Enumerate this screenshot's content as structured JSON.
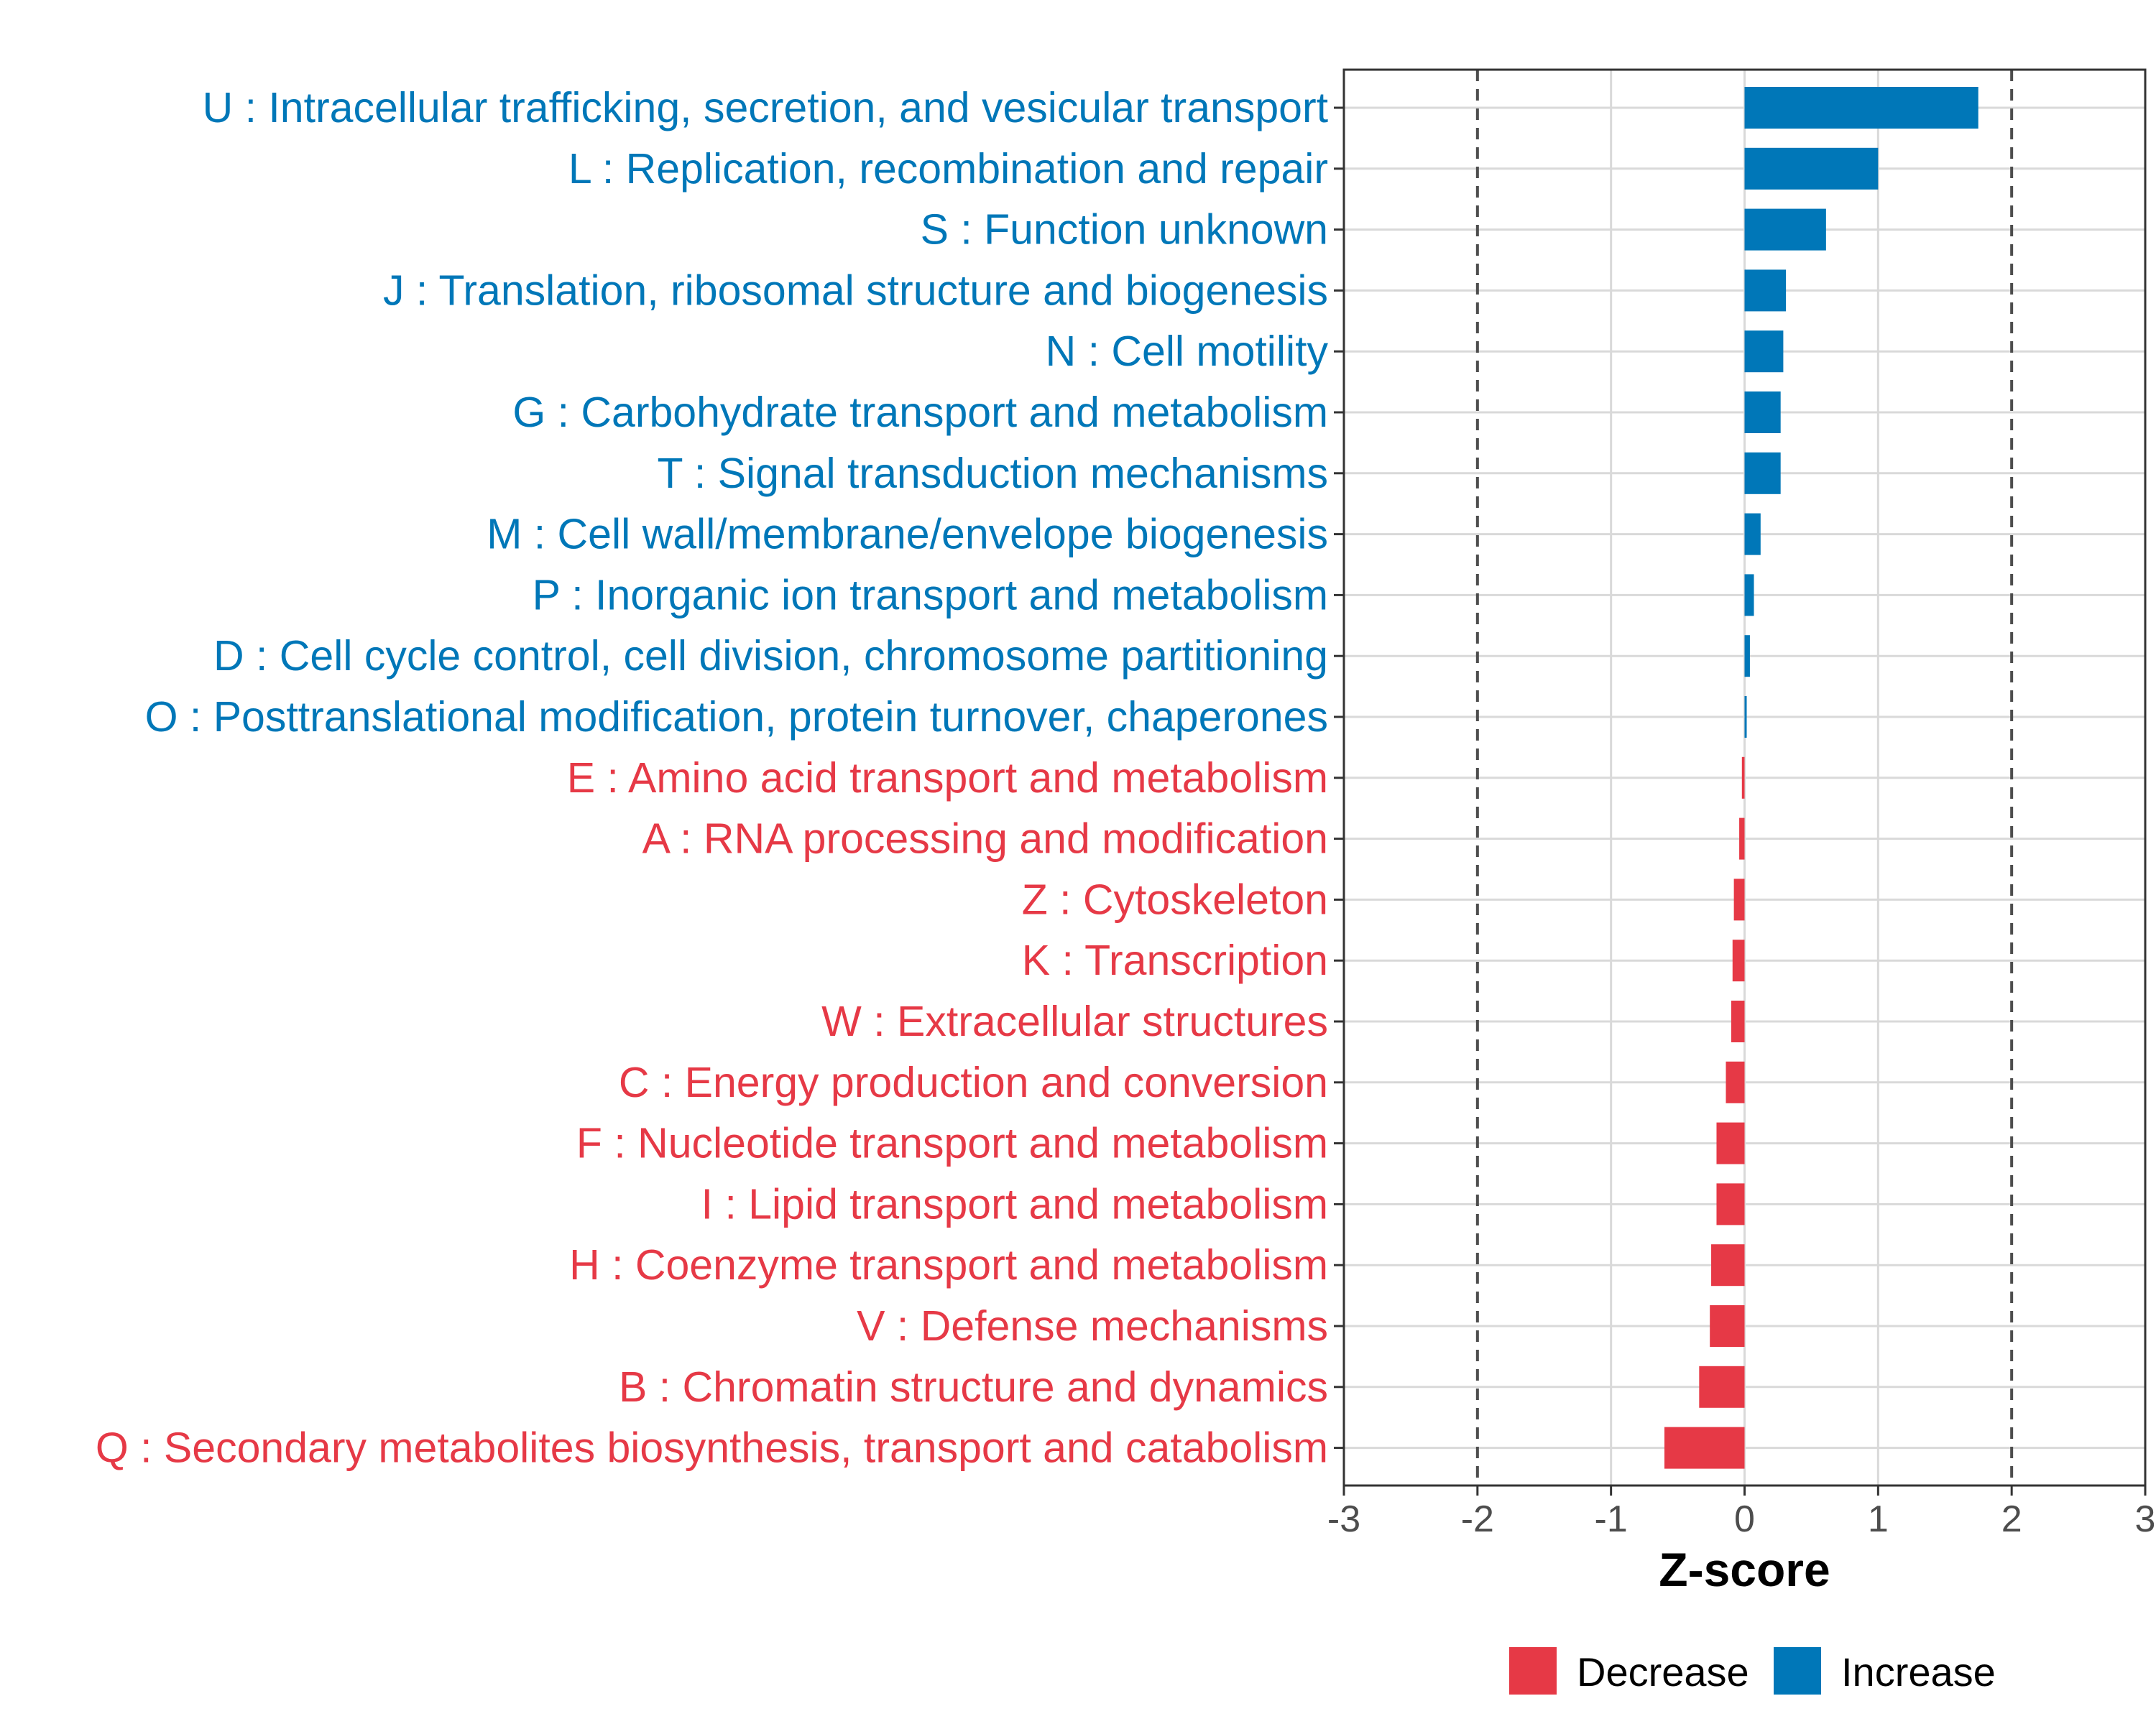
{
  "colors": {
    "increase": "#0077B8",
    "decrease": "#E63946",
    "grid": "#D9D9D9",
    "threshold": "#4D4D4D"
  },
  "chart_data": {
    "type": "bar",
    "orientation": "horizontal",
    "xlabel": "Z-score",
    "xlim": [
      -3,
      3
    ],
    "xticks": [
      "-3",
      "-2",
      "-1",
      "0",
      "1",
      "2",
      "3"
    ],
    "threshold_lines": [
      -2,
      2
    ],
    "categories": [
      "U : Intracellular trafficking, secretion, and vesicular transport",
      "L : Replication, recombination and repair",
      "S : Function unknown",
      "J : Translation, ribosomal structure and biogenesis",
      "N : Cell motility",
      "G : Carbohydrate transport and metabolism",
      "T : Signal transduction mechanisms",
      "M : Cell wall/membrane/envelope biogenesis",
      "P : Inorganic ion transport and metabolism",
      "D : Cell cycle control, cell division, chromosome partitioning",
      "O : Posttranslational modification, protein turnover, chaperones",
      "E : Amino acid transport and metabolism",
      "A : RNA processing and modification",
      "Z : Cytoskeleton",
      "K : Transcription",
      "W : Extracellular structures",
      "C : Energy production and conversion",
      "F : Nucleotide transport and metabolism",
      "I : Lipid transport and metabolism",
      "H : Coenzyme transport and metabolism",
      "V : Defense mechanisms",
      "B : Chromatin structure and dynamics",
      "Q : Secondary metabolites biosynthesis, transport and catabolism"
    ],
    "values": [
      1.75,
      1.0,
      0.61,
      0.31,
      0.29,
      0.27,
      0.27,
      0.12,
      0.07,
      0.04,
      0.01,
      -0.02,
      -0.04,
      -0.08,
      -0.09,
      -0.1,
      -0.14,
      -0.21,
      -0.21,
      -0.25,
      -0.26,
      -0.34,
      -0.6
    ],
    "groups": [
      "Increase",
      "Increase",
      "Increase",
      "Increase",
      "Increase",
      "Increase",
      "Increase",
      "Increase",
      "Increase",
      "Increase",
      "Increase",
      "Decrease",
      "Decrease",
      "Decrease",
      "Decrease",
      "Decrease",
      "Decrease",
      "Decrease",
      "Decrease",
      "Decrease",
      "Decrease",
      "Decrease",
      "Decrease"
    ],
    "legend": {
      "position": "bottom",
      "entries": [
        "Decrease",
        "Increase"
      ]
    }
  }
}
